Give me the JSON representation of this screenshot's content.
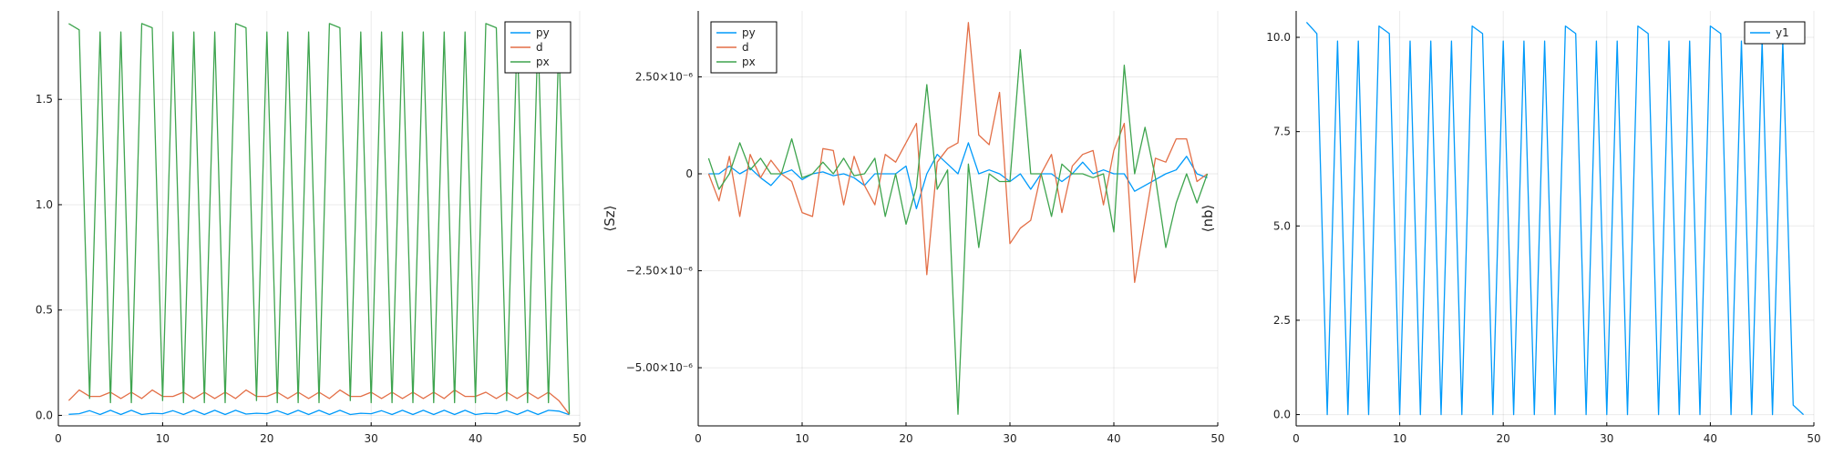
{
  "chart_data": [
    {
      "type": "line",
      "title": "",
      "xlabel": "",
      "ylabel": "",
      "xlim": [
        0,
        50
      ],
      "ylim": [
        -0.05,
        1.92
      ],
      "xticks": [
        0,
        10,
        20,
        30,
        40,
        50
      ],
      "xtick_labels": [
        "0",
        "10",
        "20",
        "30",
        "40",
        "50"
      ],
      "yticks": [
        0,
        0.5,
        1.0,
        1.5
      ],
      "ytick_labels": [
        "0.0",
        "0.5",
        "1.0",
        "1.5"
      ],
      "grid": true,
      "legend": "top-right",
      "x": [
        1,
        2,
        3,
        4,
        5,
        6,
        7,
        8,
        9,
        10,
        11,
        12,
        13,
        14,
        15,
        16,
        17,
        18,
        19,
        20,
        21,
        22,
        23,
        24,
        25,
        26,
        27,
        28,
        29,
        30,
        31,
        32,
        33,
        34,
        35,
        36,
        37,
        38,
        39,
        40,
        41,
        42,
        43,
        44,
        45,
        46,
        47,
        48,
        49
      ],
      "series": [
        {
          "name": "py",
          "color": "#009AFA",
          "values": [
            0.005,
            0.008,
            0.022,
            0.004,
            0.024,
            0.004,
            0.024,
            0.004,
            0.01,
            0.008,
            0.022,
            0.004,
            0.024,
            0.004,
            0.024,
            0.004,
            0.024,
            0.006,
            0.01,
            0.008,
            0.022,
            0.004,
            0.024,
            0.004,
            0.024,
            0.004,
            0.024,
            0.004,
            0.01,
            0.008,
            0.022,
            0.004,
            0.024,
            0.004,
            0.024,
            0.004,
            0.024,
            0.004,
            0.024,
            0.004,
            0.01,
            0.008,
            0.022,
            0.004,
            0.024,
            0.004,
            0.024,
            0.02,
            0.003
          ]
        },
        {
          "name": "d",
          "color": "#E36F47",
          "values": [
            0.07,
            0.12,
            0.09,
            0.09,
            0.11,
            0.08,
            0.11,
            0.08,
            0.12,
            0.09,
            0.09,
            0.11,
            0.08,
            0.11,
            0.08,
            0.11,
            0.08,
            0.12,
            0.09,
            0.09,
            0.11,
            0.08,
            0.11,
            0.08,
            0.11,
            0.08,
            0.12,
            0.09,
            0.09,
            0.11,
            0.08,
            0.11,
            0.08,
            0.11,
            0.08,
            0.11,
            0.08,
            0.12,
            0.09,
            0.09,
            0.11,
            0.08,
            0.11,
            0.08,
            0.11,
            0.08,
            0.11,
            0.07,
            0.005
          ]
        },
        {
          "name": "px",
          "color": "#3EA44E",
          "values": [
            1.86,
            1.83,
            0.08,
            1.82,
            0.06,
            1.82,
            0.06,
            1.86,
            1.84,
            0.07,
            1.82,
            0.06,
            1.82,
            0.06,
            1.82,
            0.06,
            1.86,
            1.84,
            0.07,
            1.82,
            0.06,
            1.82,
            0.06,
            1.82,
            0.06,
            1.86,
            1.84,
            0.07,
            1.82,
            0.06,
            1.82,
            0.06,
            1.82,
            0.06,
            1.82,
            0.06,
            1.82,
            0.06,
            1.82,
            0.06,
            1.86,
            1.84,
            0.07,
            1.82,
            0.06,
            1.82,
            0.06,
            1.78,
            0.005
          ]
        }
      ]
    },
    {
      "type": "line",
      "title": "",
      "xlabel": "",
      "ylabel": "⟨Sz⟩",
      "xlim": [
        0,
        50
      ],
      "ylim": [
        -6.5e-06,
        4.2e-06
      ],
      "xticks": [
        0,
        10,
        20,
        30,
        40,
        50
      ],
      "xtick_labels": [
        "0",
        "10",
        "20",
        "30",
        "40",
        "50"
      ],
      "yticks": [
        2.5e-06,
        0,
        -2.5e-06,
        -5e-06
      ],
      "ytick_labels": [
        "2.50×10⁻⁶",
        "0",
        "−2.50×10⁻⁶",
        "−5.00×10⁻⁶"
      ],
      "grid": true,
      "legend": "top-left",
      "x": [
        1,
        2,
        3,
        4,
        5,
        6,
        7,
        8,
        9,
        10,
        11,
        12,
        13,
        14,
        15,
        16,
        17,
        18,
        19,
        20,
        21,
        22,
        23,
        24,
        25,
        26,
        27,
        28,
        29,
        30,
        31,
        32,
        33,
        34,
        35,
        36,
        37,
        38,
        39,
        40,
        41,
        42,
        43,
        44,
        45,
        46,
        47,
        48,
        49
      ],
      "series": [
        {
          "name": "py",
          "color": "#009AFA",
          "values": [
            0,
            0,
            2e-07,
            0,
            1.5e-07,
            -1e-07,
            -3e-07,
            0,
            1e-07,
            -1.5e-07,
            0,
            5e-08,
            -5e-08,
            0,
            -1e-07,
            -3e-07,
            0,
            0,
            0,
            2e-07,
            -9e-07,
            0,
            5e-07,
            2.5e-07,
            0,
            8e-07,
            0,
            1e-07,
            0,
            -2e-07,
            0,
            -4e-07,
            0,
            0,
            -2e-07,
            0,
            3e-07,
            0,
            1e-07,
            0,
            0,
            -4.5e-07,
            -3e-07,
            -1.5e-07,
            0,
            1e-07,
            4.5e-07,
            0,
            -1e-07
          ]
        },
        {
          "name": "d",
          "color": "#E36F47",
          "values": [
            0,
            -7e-07,
            4.5e-07,
            -1.1e-06,
            5e-07,
            -1e-07,
            3.5e-07,
            0,
            -2e-07,
            -1e-06,
            -1.1e-06,
            6.5e-07,
            6e-07,
            -8e-07,
            4.5e-07,
            -3e-07,
            -8e-07,
            5e-07,
            3e-07,
            8e-07,
            1.3e-06,
            -2.6e-06,
            3e-07,
            6.5e-07,
            8e-07,
            3.9e-06,
            1e-06,
            7.5e-07,
            2.1e-06,
            -1.8e-06,
            -1.4e-06,
            -1.2e-06,
            0,
            5e-07,
            -1e-06,
            2e-07,
            5e-07,
            6e-07,
            -8e-07,
            6e-07,
            1.3e-06,
            -2.8e-06,
            -1.2e-06,
            4e-07,
            3e-07,
            9e-07,
            9e-07,
            -2e-07,
            0
          ]
        },
        {
          "name": "px",
          "color": "#3EA44E",
          "values": [
            4e-07,
            -4e-07,
            0,
            8e-07,
            1e-07,
            4e-07,
            0,
            0,
            9e-07,
            -1e-07,
            0,
            3e-07,
            0,
            4e-07,
            -5e-08,
            0,
            4e-07,
            -1.1e-06,
            0,
            -1.3e-06,
            -3.5e-07,
            2.3e-06,
            -4e-07,
            1e-07,
            -6.2e-06,
            2.5e-07,
            -1.9e-06,
            0,
            -2e-07,
            -2e-07,
            3.2e-06,
            0,
            0,
            -1.1e-06,
            2.5e-07,
            0,
            0,
            -1e-07,
            0,
            -1.5e-06,
            2.8e-06,
            0,
            1.2e-06,
            -1e-07,
            -1.9e-06,
            -7.5e-07,
            0,
            -7.5e-07,
            0
          ]
        }
      ]
    },
    {
      "type": "line",
      "title": "",
      "xlabel": "",
      "ylabel": "⟨nb⟩",
      "xlim": [
        0,
        50
      ],
      "ylim": [
        -0.3,
        10.7
      ],
      "xticks": [
        0,
        10,
        20,
        30,
        40,
        50
      ],
      "xtick_labels": [
        "0",
        "10",
        "20",
        "30",
        "40",
        "50"
      ],
      "yticks": [
        0,
        2.5,
        5.0,
        7.5,
        10.0
      ],
      "ytick_labels": [
        "0.0",
        "2.5",
        "5.0",
        "7.5",
        "10.0"
      ],
      "grid": true,
      "legend": "top-right",
      "x": [
        1,
        2,
        3,
        4,
        5,
        6,
        7,
        8,
        9,
        10,
        11,
        12,
        13,
        14,
        15,
        16,
        17,
        18,
        19,
        20,
        21,
        22,
        23,
        24,
        25,
        26,
        27,
        28,
        29,
        30,
        31,
        32,
        33,
        34,
        35,
        36,
        37,
        38,
        39,
        40,
        41,
        42,
        43,
        44,
        45,
        46,
        47,
        48,
        49
      ],
      "series": [
        {
          "name": "y1",
          "color": "#009AFA",
          "values": [
            10.4,
            10.1,
            0,
            9.9,
            0,
            9.9,
            0,
            10.3,
            10.1,
            0,
            9.9,
            0,
            9.9,
            0,
            9.9,
            0,
            10.3,
            10.1,
            0,
            9.9,
            0,
            9.9,
            0,
            9.9,
            0,
            10.3,
            10.1,
            0,
            9.9,
            0,
            9.9,
            0,
            10.3,
            10.1,
            0,
            9.9,
            0,
            9.9,
            0,
            10.3,
            10.1,
            0,
            9.9,
            0,
            9.9,
            0,
            9.9,
            0.25,
            0
          ]
        }
      ]
    }
  ]
}
